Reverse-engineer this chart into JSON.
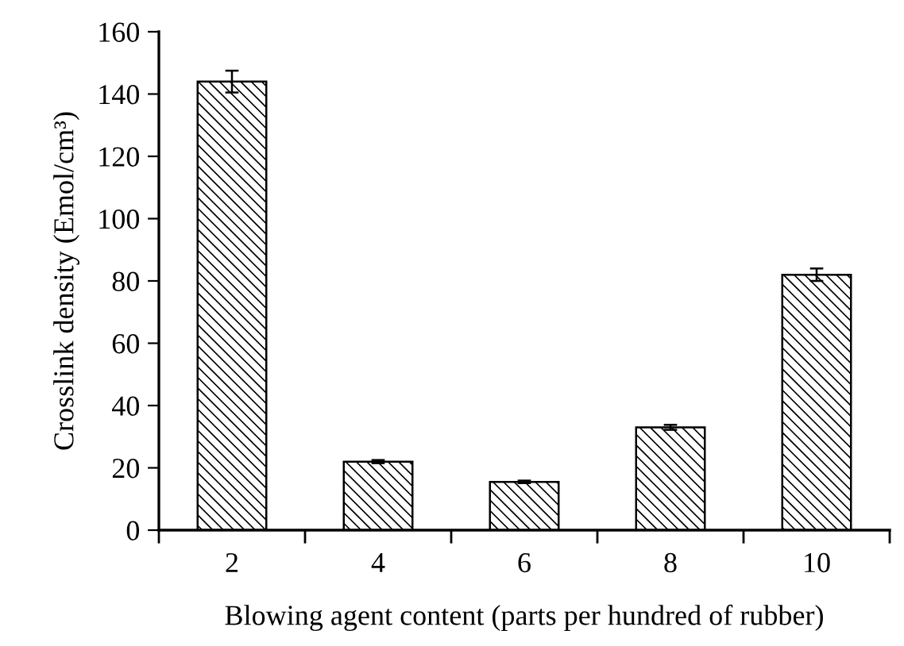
{
  "chart_data": {
    "type": "bar",
    "xlabel": "Blowing agent content (parts per hundred of rubber)",
    "ylabel": "Crosslink density (Emol/cm³)",
    "categories": [
      "2",
      "4",
      "6",
      "8",
      "10"
    ],
    "values": [
      144,
      22,
      15.5,
      33,
      82
    ],
    "errors": [
      3.5,
      0.5,
      0.4,
      0.8,
      2
    ],
    "color": "#000000",
    "ylim": [
      0,
      160
    ],
    "yticks": [
      0,
      20,
      40,
      60,
      80,
      100,
      120,
      140,
      160
    ],
    "grid": false,
    "legend": false
  }
}
